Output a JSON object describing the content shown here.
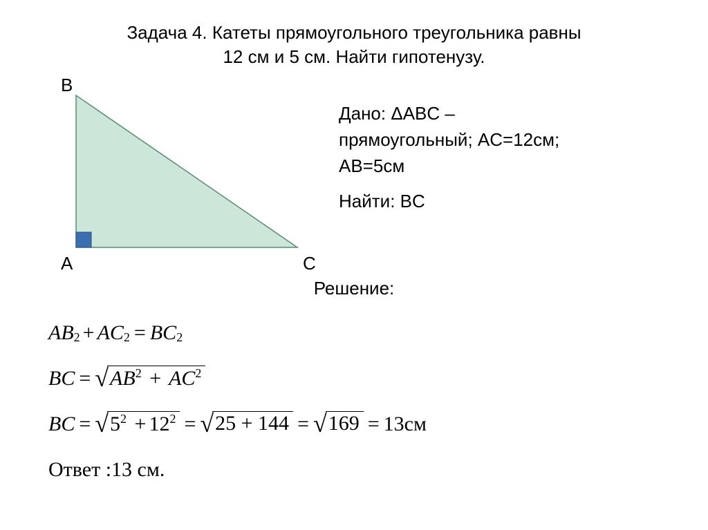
{
  "title_line1": "Задача 4. Катеты прямоугольного треугольника равны",
  "title_line2": "12 см и 5 см. Найти гипотенузу.",
  "diagram": {
    "vertices": {
      "A": "A",
      "B": "B",
      "C": "C"
    },
    "points": {
      "A": [
        60,
        250
      ],
      "B": [
        60,
        30
      ],
      "C": [
        380,
        250
      ]
    },
    "fill_color": "#cce6d9",
    "stroke_color": "#5a8a76",
    "right_angle_size": 22,
    "right_angle_fill": "#3b6fb0"
  },
  "given": {
    "line1a": "Дано: ΔABC –",
    "line1b": "прямоугольный; AC=12см;",
    "line1c": "AB=5см",
    "line2": "Найти: BC"
  },
  "solution_label": "Решение:",
  "formulas": {
    "eq1": {
      "lhs_a": "AB",
      "lhs_b": "AC",
      "rhs": "BC"
    },
    "eq2": {
      "lhs": "BC",
      "a": "AB",
      "b": "AC"
    },
    "eq3": {
      "lhs": "BC",
      "step1_a": "5",
      "step1_b": "12",
      "step2": "25 + 144",
      "step3": "169",
      "result": "13",
      "unit": "см"
    },
    "answer_label": "Ответ :",
    "answer_value": "13 см."
  },
  "style": {
    "body_fontsize": 26,
    "formula_fontsize": 30,
    "text_color": "#000000",
    "bg_color": "#ffffff"
  }
}
